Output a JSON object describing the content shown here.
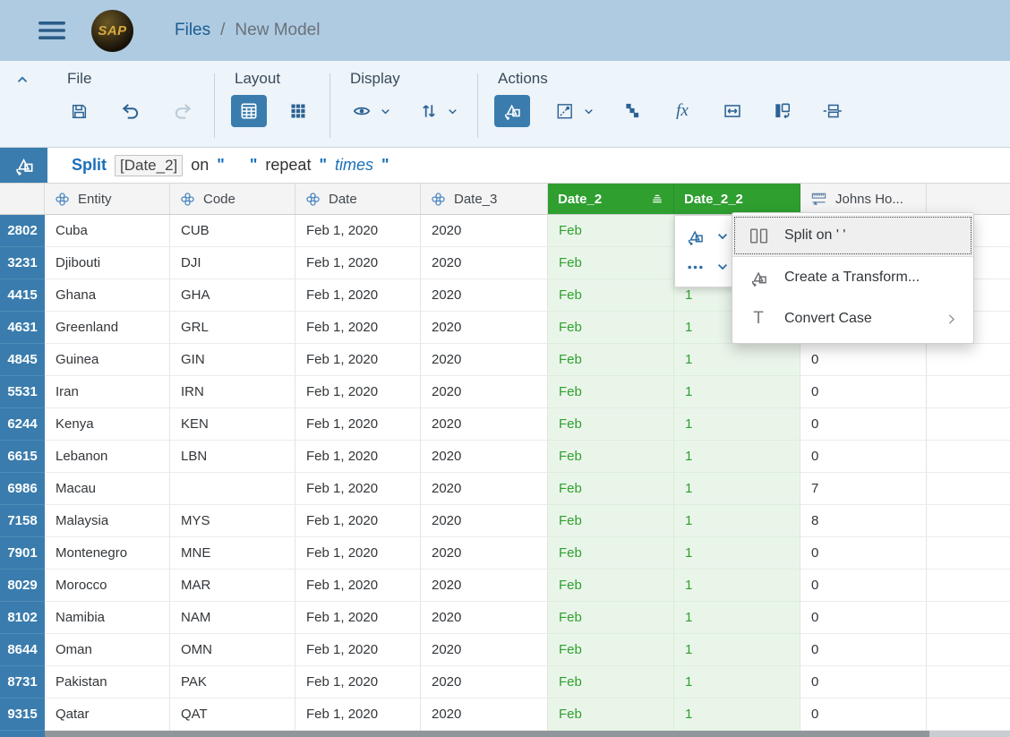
{
  "topbar": {
    "logo_text": "SAP",
    "breadcrumb": {
      "root": "Files",
      "separator": "/",
      "current": "New Model"
    }
  },
  "toolbar": {
    "groups": {
      "file": "File",
      "layout": "Layout",
      "display": "Display",
      "actions": "Actions"
    }
  },
  "formula": {
    "keyword": "Split",
    "token": "[Date_2]",
    "on_word": "on",
    "quote": "\"",
    "delimiter": "  ",
    "repeat_word": "repeat",
    "placeholder": "times"
  },
  "table": {
    "columns": [
      {
        "label": "Entity",
        "type": "dimension"
      },
      {
        "label": "Code",
        "type": "dimension"
      },
      {
        "label": "Date",
        "type": "dimension"
      },
      {
        "label": "Date_3",
        "type": "dimension"
      },
      {
        "label": "Date_2",
        "type": "dimension",
        "selected": true,
        "sorted": true
      },
      {
        "label": "Date_2_2",
        "type": "dimension",
        "selected": true
      },
      {
        "label": "Johns Ho...",
        "type": "measure"
      }
    ],
    "rows": [
      {
        "num": "2802",
        "entity": "Cuba",
        "code": "CUB",
        "date": "Feb 1, 2020",
        "date_3": "2020",
        "date_2": "Feb",
        "date_2_2": "",
        "johns": ""
      },
      {
        "num": "3231",
        "entity": "Djibouti",
        "code": "DJI",
        "date": "Feb 1, 2020",
        "date_3": "2020",
        "date_2": "Feb",
        "date_2_2": "",
        "johns": ""
      },
      {
        "num": "4415",
        "entity": "Ghana",
        "code": "GHA",
        "date": "Feb 1, 2020",
        "date_3": "2020",
        "date_2": "Feb",
        "date_2_2": "1",
        "johns": ""
      },
      {
        "num": "4631",
        "entity": "Greenland",
        "code": "GRL",
        "date": "Feb 1, 2020",
        "date_3": "2020",
        "date_2": "Feb",
        "date_2_2": "1",
        "johns": ""
      },
      {
        "num": "4845",
        "entity": "Guinea",
        "code": "GIN",
        "date": "Feb 1, 2020",
        "date_3": "2020",
        "date_2": "Feb",
        "date_2_2": "1",
        "johns": "0"
      },
      {
        "num": "5531",
        "entity": "Iran",
        "code": "IRN",
        "date": "Feb 1, 2020",
        "date_3": "2020",
        "date_2": "Feb",
        "date_2_2": "1",
        "johns": "0"
      },
      {
        "num": "6244",
        "entity": "Kenya",
        "code": "KEN",
        "date": "Feb 1, 2020",
        "date_3": "2020",
        "date_2": "Feb",
        "date_2_2": "1",
        "johns": "0"
      },
      {
        "num": "6615",
        "entity": "Lebanon",
        "code": "LBN",
        "date": "Feb 1, 2020",
        "date_3": "2020",
        "date_2": "Feb",
        "date_2_2": "1",
        "johns": "0"
      },
      {
        "num": "6986",
        "entity": "Macau",
        "code": "",
        "date": "Feb 1, 2020",
        "date_3": "2020",
        "date_2": "Feb",
        "date_2_2": "1",
        "johns": "7"
      },
      {
        "num": "7158",
        "entity": "Malaysia",
        "code": "MYS",
        "date": "Feb 1, 2020",
        "date_3": "2020",
        "date_2": "Feb",
        "date_2_2": "1",
        "johns": "8"
      },
      {
        "num": "7901",
        "entity": "Montenegro",
        "code": "MNE",
        "date": "Feb 1, 2020",
        "date_3": "2020",
        "date_2": "Feb",
        "date_2_2": "1",
        "johns": "0"
      },
      {
        "num": "8029",
        "entity": "Morocco",
        "code": "MAR",
        "date": "Feb 1, 2020",
        "date_3": "2020",
        "date_2": "Feb",
        "date_2_2": "1",
        "johns": "0"
      },
      {
        "num": "8102",
        "entity": "Namibia",
        "code": "NAM",
        "date": "Feb 1, 2020",
        "date_3": "2020",
        "date_2": "Feb",
        "date_2_2": "1",
        "johns": "0"
      },
      {
        "num": "8644",
        "entity": "Oman",
        "code": "OMN",
        "date": "Feb 1, 2020",
        "date_3": "2020",
        "date_2": "Feb",
        "date_2_2": "1",
        "johns": "0"
      },
      {
        "num": "8731",
        "entity": "Pakistan",
        "code": "PAK",
        "date": "Feb 1, 2020",
        "date_3": "2020",
        "date_2": "Feb",
        "date_2_2": "1",
        "johns": "0"
      },
      {
        "num": "9315",
        "entity": "Qatar",
        "code": "QAT",
        "date": "Feb 1, 2020",
        "date_3": "2020",
        "date_2": "Feb",
        "date_2_2": "1",
        "johns": "0"
      }
    ]
  },
  "context_menu": {
    "items": [
      {
        "label": "Split on ' '",
        "icon": "split-columns-icon",
        "highlighted": true
      },
      {
        "label": "Create a Transform...",
        "icon": "transform-icon"
      },
      {
        "label": "Convert Case",
        "icon": "convert-case-icon",
        "has_submenu": true
      }
    ]
  },
  "colors": {
    "accent_blue": "#3a7cad",
    "topbar_blue": "#aecbe2",
    "selected_green": "#2f9f30",
    "green_cell_bg": "#eaf5ea"
  }
}
